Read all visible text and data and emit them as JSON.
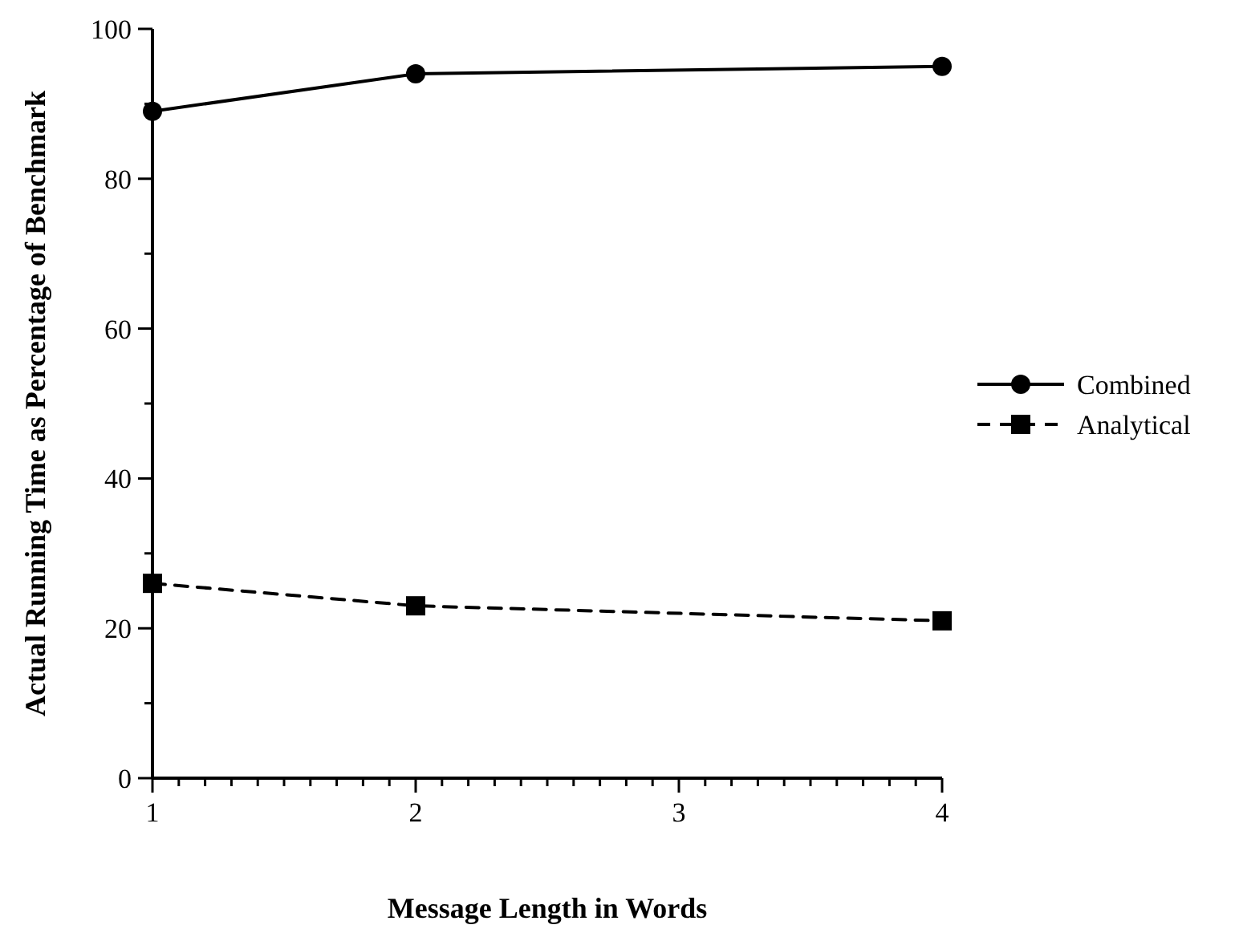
{
  "chart_data": {
    "type": "line",
    "xlabel": "Message Length in Words",
    "ylabel": "Actual Running Time as Percentage of Benchmark",
    "x": [
      1,
      2,
      4
    ],
    "xlim": [
      1,
      4
    ],
    "xticks": [
      1,
      2,
      3,
      4
    ],
    "ylim": [
      0,
      100
    ],
    "yticks": [
      0,
      20,
      40,
      60,
      80,
      100
    ],
    "legend": "right",
    "grid": false,
    "series": [
      {
        "name": "Combined",
        "color": "#000000",
        "values": [
          89,
          94,
          95
        ],
        "marker": "circle",
        "line_style": "solid"
      },
      {
        "name": "Analytical",
        "color": "#000000",
        "values": [
          26,
          23,
          21
        ],
        "marker": "square",
        "line_style": "dashed"
      }
    ]
  }
}
